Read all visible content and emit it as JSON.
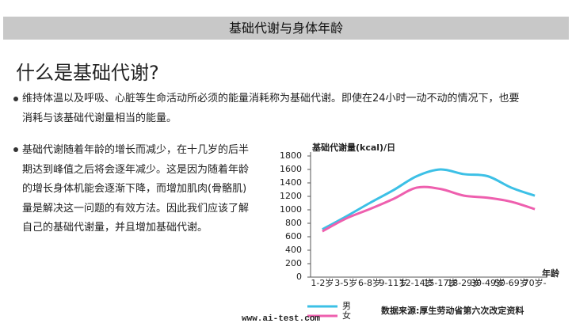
{
  "header": {
    "title": "基础代谢与身体年龄"
  },
  "heading": "什么是基础代谢?",
  "paragraphs": [
    [
      "维持体温以及呼吸、心脏等生命活动所必须的能量消耗称为基础代谢。即使在24小时一动不动的情况下，也要",
      "消耗与该基础代谢量相当的能量。"
    ],
    [
      "基础代谢随着年龄的增长而减少，在十几岁的后半",
      "期达到峰值之后将会逐年减少。这是因为随着年龄",
      "的增长身体机能会逐渐下降，而增加肌肉(骨骼肌)",
      "量是解决这一问题的有效方法。因此我们应该了解",
      "自己的基础代谢量，并且增加基础代谢。"
    ]
  ],
  "chart_data": {
    "type": "line",
    "title": "基础代谢量(kcal)/日",
    "x_label": "年龄",
    "categories": [
      "1-2岁",
      "3-5岁",
      "6-8岁",
      "9-11岁",
      "12-14岁",
      "15-17岁",
      "18-29岁",
      "30-49岁",
      "50-69岁",
      "70岁-"
    ],
    "series": [
      {
        "name": "男",
        "color": "#3cc0e6",
        "values": [
          710,
          900,
          1100,
          1290,
          1500,
          1600,
          1530,
          1500,
          1330,
          1210
        ]
      },
      {
        "name": "女",
        "color": "#ee5fae",
        "values": [
          680,
          870,
          1010,
          1160,
          1330,
          1310,
          1210,
          1180,
          1120,
          1010
        ]
      }
    ],
    "ylim": [
      0,
      1800
    ],
    "yticks": [
      0,
      200,
      400,
      600,
      800,
      1000,
      1200,
      1400,
      1600,
      1800
    ],
    "source": "数据来源:厚生劳动省第六次改定资料"
  },
  "watermark": "www.ai-test.com"
}
